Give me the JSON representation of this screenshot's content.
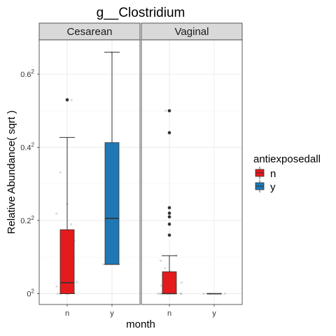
{
  "chart_data": {
    "type": "boxplot",
    "title": "g__Clostridium",
    "xlabel": "month",
    "ylabel": "Relative Abundance( sqrt )",
    "y_scale": "sqrt",
    "ylim": [
      0,
      0.45
    ],
    "yticks": [
      {
        "value": 0,
        "base": "0",
        "exp": "2"
      },
      {
        "value": 0.04,
        "base": "0.2",
        "exp": "2"
      },
      {
        "value": 0.16,
        "base": "0.4",
        "exp": "2"
      },
      {
        "value": 0.36,
        "base": "0.6",
        "exp": "2"
      }
    ],
    "categories": [
      "n",
      "y"
    ],
    "grid": true,
    "legend": {
      "title": "antiexposedall",
      "position": "right",
      "entries": [
        {
          "label": "n",
          "color": "#e41a1c"
        },
        {
          "label": "y",
          "color": "#1f78b4"
        }
      ]
    },
    "panels": [
      {
        "name": "Cesarean",
        "boxes": [
          {
            "group": "n",
            "color": "#e41a1c",
            "min": 0,
            "q1": 0,
            "median": 0.0009,
            "q3": 0.0306,
            "max": 0.1823,
            "outliers": [
              0.2809
            ],
            "jitter": [
              0,
              0,
              0,
              0,
              0,
              0,
              0.0004,
              0.001,
              0.004,
              0.008,
              0.012,
              0.021,
              0.036,
              0.048,
              0.06,
              0.11,
              0.28
            ]
          },
          {
            "group": "y",
            "color": "#1f78b4",
            "min": 0.0064,
            "q1": 0.0064,
            "median": 0.0424,
            "q3": 0.1706,
            "max": 0.4356,
            "outliers": [],
            "jitter": [
              0.0064,
              0.11,
              0.4356
            ]
          }
        ]
      },
      {
        "name": "Vaginal",
        "boxes": [
          {
            "group": "n",
            "color": "#e41a1c",
            "min": 0,
            "q1": 0,
            "median": 0,
            "q3": 0.0036,
            "max": 0.0108,
            "outliers": [
              0.0256,
              0.0361,
              0.0441,
              0.0484,
              0.0552,
              0.1936,
              0.25
            ],
            "jitter": [
              0,
              0,
              0,
              0,
              0,
              0,
              0,
              0,
              0,
              0,
              0,
              0.0002,
              0.0005,
              0.0009,
              0.0016,
              0.0025,
              0.0036,
              0.0049,
              0.0081,
              0.0108,
              0.25
            ]
          },
          {
            "group": "y",
            "color": "#1f78b4",
            "min": 0,
            "q1": 0,
            "median": 0,
            "q3": 0,
            "max": 0,
            "outliers": [],
            "jitter": [
              0,
              0,
              0
            ]
          }
        ]
      }
    ]
  }
}
